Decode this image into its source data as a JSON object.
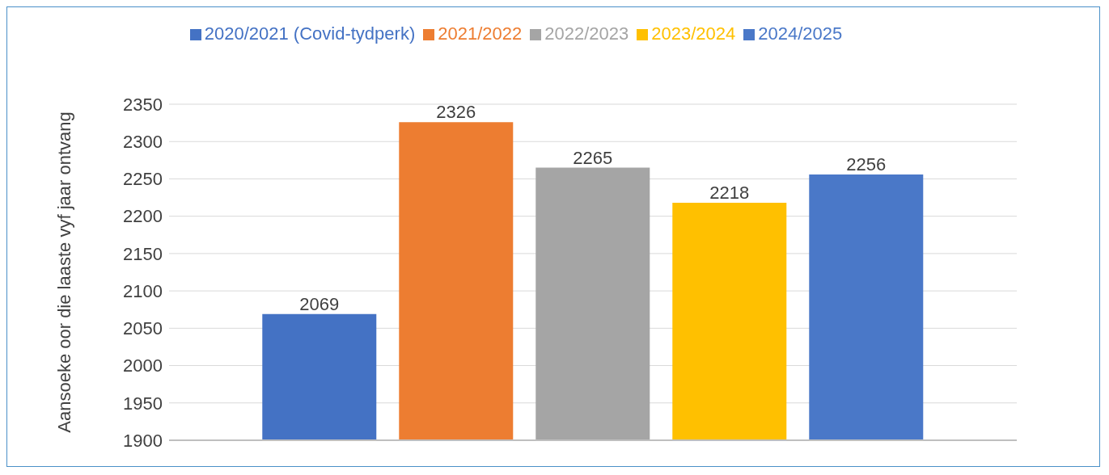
{
  "chart_data": {
    "type": "bar",
    "ylabel": "Aansoeke oor die laaste vyf jaar ontvang",
    "categories": [
      null
    ],
    "series": [
      {
        "name": "2020/2021 (Covid-tydperk)",
        "color": "#4472c4",
        "values": [
          2069
        ]
      },
      {
        "name": "2021/2022",
        "color": "#ed7d31",
        "values": [
          2326
        ]
      },
      {
        "name": "2022/2023",
        "color": "#a5a5a5",
        "values": [
          2265
        ]
      },
      {
        "name": "2023/2024",
        "color": "#ffc000",
        "values": [
          2218
        ]
      },
      {
        "name": "2024/2025",
        "color": "#4a78c8",
        "values": [
          2256
        ]
      }
    ],
    "ylim": [
      1900,
      2350
    ],
    "yticks": [
      1900,
      1950,
      2000,
      2050,
      2100,
      2150,
      2200,
      2250,
      2300,
      2350
    ],
    "grid": "y",
    "legend": "top",
    "data_labels": true
  }
}
